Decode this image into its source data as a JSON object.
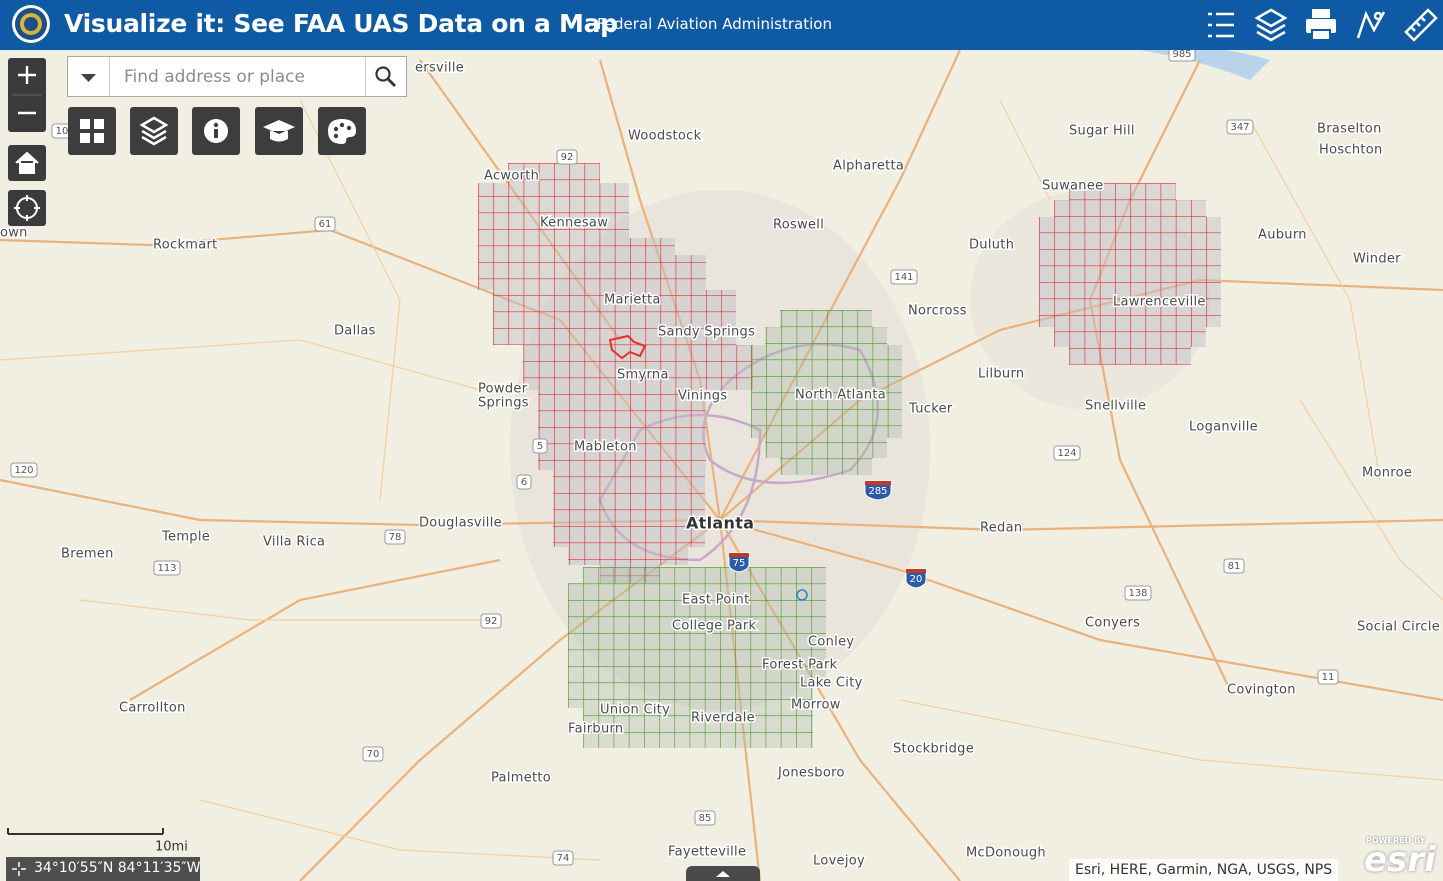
{
  "header": {
    "title": "Visualize it: See FAA UAS Data on a Map",
    "subtitle": "Federal Aviation Administration"
  },
  "search": {
    "placeholder": "Find address or place"
  },
  "map": {
    "places": [
      "ersville",
      "Woodstock",
      "Acworth",
      "Kennesaw",
      "Alpharetta",
      "Sugar Hill",
      "Braselton",
      "Hoschton",
      "Suwanee",
      "Roswell",
      "Duluth",
      "Auburn",
      "Winder",
      "Rockmart",
      "own",
      "Marietta",
      "Lawrenceville",
      "Norcross",
      "Dallas",
      "Sandy Springs",
      "Lilburn",
      "Smyrna",
      "Powder",
      "Springs",
      "Vinings",
      "North Atlanta",
      "Tucker",
      "Snellville",
      "Loganville",
      "Mableton",
      "Monroe",
      "Douglasville",
      "Atlanta",
      "Redan",
      "Temple",
      "Villa Rica",
      "Bremen",
      "East Point",
      "College Park",
      "Conyers",
      "Social Circle",
      "Conley",
      "Forest Park",
      "Lake City",
      "Covington",
      "Morrow",
      "Carrollton",
      "Union City",
      "Riverdale",
      "Fairburn",
      "Stockbridge",
      "Jonesboro",
      "Palmetto",
      "Fayetteville",
      "Lovejoy",
      "McDonough"
    ],
    "shields": [
      "92",
      "61",
      "141",
      "347",
      "985",
      "120",
      "5",
      "6",
      "78",
      "113",
      "70",
      "85",
      "74",
      "138",
      "81",
      "11",
      "124",
      "285",
      "20",
      "75",
      "92",
      "10"
    ],
    "scale": "10mi",
    "coordinates": "34°10′55″N 84°11′35″W",
    "attribution": "Esri, HERE, Garmin, NGA, USGS, NPS",
    "logo": {
      "tagline": "POWERED BY",
      "brand": "esri"
    }
  }
}
